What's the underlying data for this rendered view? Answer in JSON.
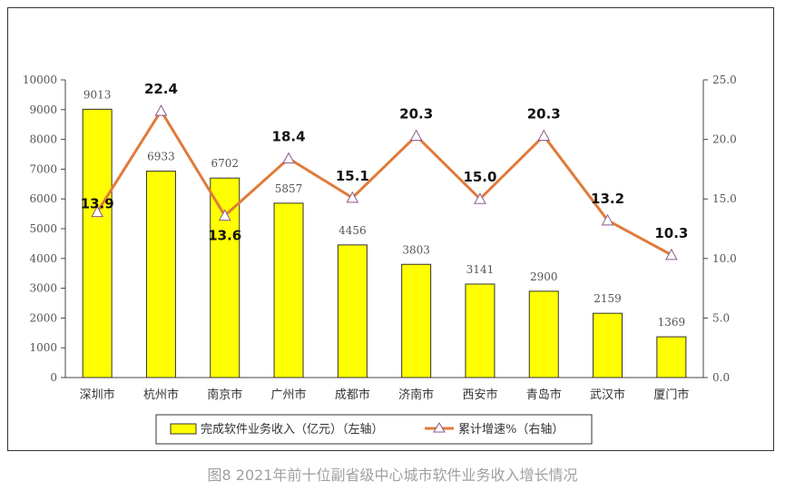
{
  "chart_data": {
    "type": "bar+line",
    "title": "图8  2021年前十位副省级中心城市软件业务收入增长情况",
    "categories": [
      "深圳市",
      "杭州市",
      "南京市",
      "广州市",
      "成都市",
      "济南市",
      "西安市",
      "青岛市",
      "武汉市",
      "厦门市"
    ],
    "series": [
      {
        "name": "完成软件业务收入（亿元）（左轴）",
        "type": "bar",
        "axis": "left",
        "color": "#ffff00",
        "values": [
          9013,
          6933,
          6702,
          5857,
          4456,
          3803,
          3141,
          2900,
          2159,
          1369
        ]
      },
      {
        "name": "累计增速%（右轴）",
        "type": "line",
        "axis": "right",
        "color": "#e07b39",
        "marker": "triangle",
        "values": [
          13.9,
          22.4,
          13.6,
          18.4,
          15.1,
          20.3,
          15.0,
          20.3,
          13.2,
          10.3
        ]
      }
    ],
    "bar_labels": [
      "9013",
      "6933",
      "6702",
      "5857",
      "4456",
      "3803",
      "3141",
      "2900",
      "2159",
      "1369"
    ],
    "line_labels": [
      "13.9",
      "22.4",
      "13.6",
      "18.4",
      "15.1",
      "20.3",
      "15.0",
      "20.3",
      "13.2",
      "10.3"
    ],
    "y_left": {
      "ylim": [
        0,
        10000
      ],
      "ticks": [
        "0",
        "1000",
        "2000",
        "3000",
        "4000",
        "5000",
        "6000",
        "7000",
        "8000",
        "9000",
        "10000"
      ]
    },
    "y_right": {
      "ylim": [
        0,
        25
      ],
      "ticks": [
        "0.0",
        "5.0",
        "10.0",
        "15.0",
        "20.0",
        "25.0"
      ]
    },
    "grid": false,
    "legend": "bottom"
  }
}
